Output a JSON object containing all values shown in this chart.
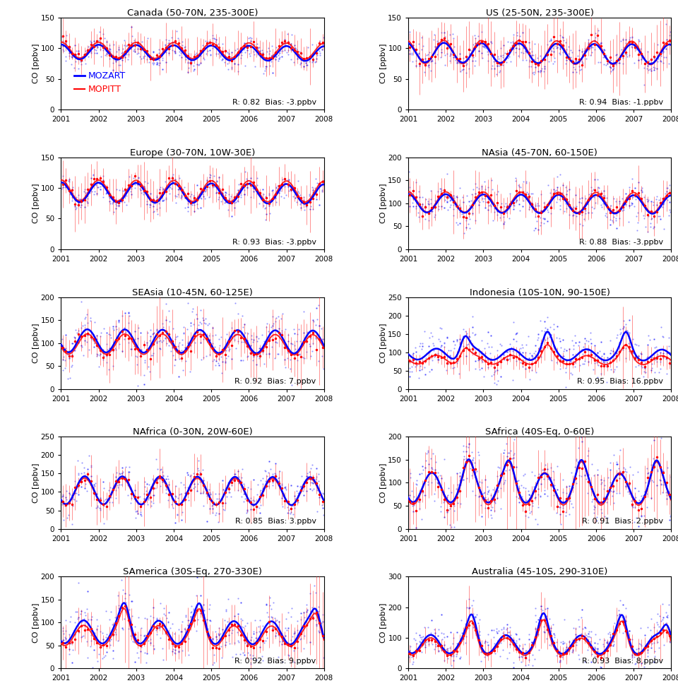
{
  "panels": [
    {
      "title": "Canada (50-70N, 235-300E)",
      "ylim": [
        0,
        150
      ],
      "yticks": [
        0,
        50,
        100,
        150
      ],
      "stats": "R: 0.82  Bias: -3.ppbv",
      "mozart_mean": 94,
      "mozart_amp": 12,
      "mozart_phase": 0.25,
      "mopitt_mean": 97,
      "mopitt_amp": 13,
      "mopitt_phase": 0.25,
      "blue_noise": 10,
      "red_err": 20,
      "spike": false,
      "row": 0,
      "col": 0
    },
    {
      "title": "US (25-50N, 235-300E)",
      "ylim": [
        0,
        150
      ],
      "yticks": [
        0,
        50,
        100,
        150
      ],
      "stats": "R: 0.94  Bias: -1.ppbv",
      "mozart_mean": 93,
      "mozart_amp": 16,
      "mozart_phase": 0.3,
      "mopitt_mean": 94,
      "mopitt_amp": 19,
      "mopitt_phase": 0.3,
      "blue_noise": 12,
      "red_err": 28,
      "spike": false,
      "row": 0,
      "col": 1
    },
    {
      "title": "Europe (30-70N, 10W-30E)",
      "ylim": [
        0,
        150
      ],
      "yticks": [
        0,
        50,
        100,
        150
      ],
      "stats": "R: 0.93  Bias: -3.ppbv",
      "mozart_mean": 93,
      "mozart_amp": 16,
      "mozart_phase": 0.25,
      "mopitt_mean": 96,
      "mopitt_amp": 17,
      "mopitt_phase": 0.25,
      "blue_noise": 10,
      "red_err": 22,
      "spike": false,
      "row": 1,
      "col": 0
    },
    {
      "title": "NAsia (45-70N, 60-150E)",
      "ylim": [
        0,
        200
      ],
      "yticks": [
        0,
        50,
        100,
        150,
        200
      ],
      "stats": "R: 0.88  Bias: -3.ppbv",
      "mozart_mean": 100,
      "mozart_amp": 20,
      "mozart_phase": 0.25,
      "mopitt_mean": 103,
      "mopitt_amp": 22,
      "mopitt_phase": 0.25,
      "blue_noise": 20,
      "red_err": 30,
      "spike": false,
      "row": 1,
      "col": 1
    },
    {
      "title": "SEAsia (10-45N, 60-125E)",
      "ylim": [
        0,
        200
      ],
      "yticks": [
        0,
        50,
        100,
        150,
        200
      ],
      "stats": "R: 0.92  Bias: 7.ppbv",
      "mozart_mean": 105,
      "mozart_amp": 25,
      "mozart_phase": 0.55,
      "mopitt_mean": 98,
      "mopitt_amp": 22,
      "mopitt_phase": 0.55,
      "blue_noise": 28,
      "red_err": 40,
      "spike": false,
      "row": 2,
      "col": 0
    },
    {
      "title": "Indonesia (10S-10N, 90-150E)",
      "ylim": [
        0,
        250
      ],
      "yticks": [
        0,
        50,
        100,
        150,
        200,
        250
      ],
      "stats": "R: 0.95  Bias: 16.ppbv",
      "mozart_mean": 95,
      "mozart_amp": 15,
      "mozart_phase": 0.5,
      "mopitt_mean": 80,
      "mopitt_amp": 12,
      "mopitt_phase": 0.5,
      "blue_noise": 30,
      "red_err": 20,
      "spike": true,
      "spike_years": [
        2002.5,
        2004.7,
        2006.8
      ],
      "spike_amp_blue": 80,
      "spike_amp_red": 30,
      "row": 2,
      "col": 1
    },
    {
      "title": "NAfrica (0-30N, 20W-60E)",
      "ylim": [
        0,
        250
      ],
      "yticks": [
        0,
        50,
        100,
        150,
        200,
        250
      ],
      "stats": "R: 0.85  Bias: 3.ppbv",
      "mozart_mean": 105,
      "mozart_amp": 38,
      "mozart_phase": 0.62,
      "mopitt_mean": 102,
      "mopitt_amp": 36,
      "mopitt_phase": 0.62,
      "blue_noise": 25,
      "red_err": 35,
      "spike": false,
      "row": 3,
      "col": 0
    },
    {
      "title": "SAfrica (40S-Eq, 0-60E)",
      "ylim": [
        0,
        200
      ],
      "yticks": [
        0,
        50,
        100,
        150,
        200
      ],
      "stats": "R: 0.91  Bias: 2.ppbv",
      "mozart_mean": 90,
      "mozart_amp": 32,
      "mozart_phase": 0.62,
      "mopitt_mean": 88,
      "mopitt_amp": 35,
      "mopitt_phase": 0.62,
      "blue_noise": 30,
      "red_err": 40,
      "spike": true,
      "spike_years": [
        2002.6,
        2003.7,
        2005.6,
        2007.6
      ],
      "spike_amp_blue": 50,
      "spike_amp_red": 25,
      "row": 3,
      "col": 1
    },
    {
      "title": "SAmerica (30S-Eq, 270-330E)",
      "ylim": [
        0,
        200
      ],
      "yticks": [
        0,
        50,
        100,
        150,
        200
      ],
      "stats": "R: 0.92  Bias: 9.ppbv",
      "mozart_mean": 80,
      "mozart_amp": 25,
      "mozart_phase": 0.65,
      "mopitt_mean": 72,
      "mopitt_amp": 22,
      "mopitt_phase": 0.65,
      "blue_noise": 30,
      "red_err": 30,
      "spike": true,
      "spike_years": [
        2002.7,
        2004.7,
        2007.8
      ],
      "spike_amp_blue": 70,
      "spike_amp_red": 40,
      "row": 4,
      "col": 0
    },
    {
      "title": "Australia (45-10S, 290-310E)",
      "ylim": [
        0,
        300
      ],
      "yticks": [
        0,
        100,
        200,
        300
      ],
      "stats": "R: 0.93  Bias: 8.ppbv",
      "mozart_mean": 80,
      "mozart_amp": 30,
      "mozart_phase": 0.65,
      "mopitt_mean": 72,
      "mopitt_amp": 28,
      "mopitt_phase": 0.65,
      "blue_noise": 35,
      "red_err": 25,
      "spike": true,
      "spike_years": [
        2002.7,
        2004.6,
        2006.7,
        2007.9
      ],
      "spike_amp_blue": 120,
      "spike_amp_red": 60,
      "row": 4,
      "col": 1
    }
  ],
  "blue_color": "#0000FF",
  "red_color": "#FF0000",
  "bg_color": "#FFFFFF",
  "years": [
    2001,
    2002,
    2003,
    2004,
    2005,
    2006,
    2007,
    2008
  ]
}
